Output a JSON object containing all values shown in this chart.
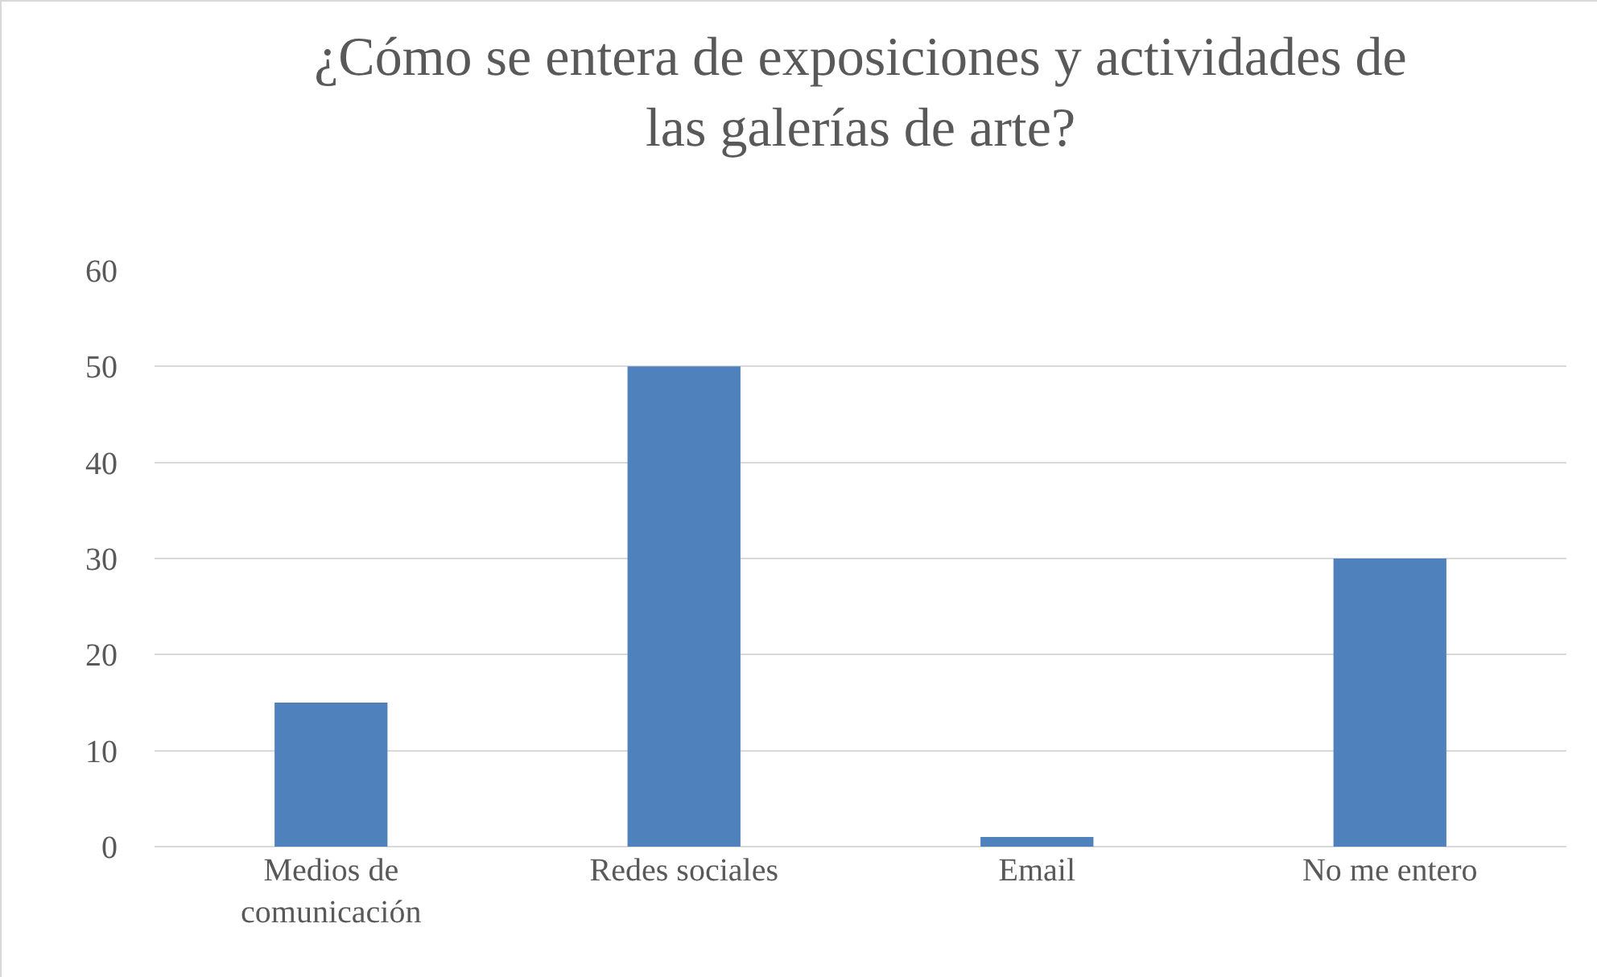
{
  "chart_data": {
    "type": "bar",
    "title": "¿Cómo se entera de exposiciones y actividades de las galerías de arte?",
    "categories": [
      "Medios de comunicación",
      "Redes sociales",
      "Email",
      "No me entero"
    ],
    "values": [
      15,
      50,
      1,
      30
    ],
    "color": "#4f81bd",
    "ylim": [
      0,
      60
    ],
    "yticks": [
      0,
      10,
      20,
      30,
      40,
      50,
      60
    ],
    "grid": "y"
  }
}
